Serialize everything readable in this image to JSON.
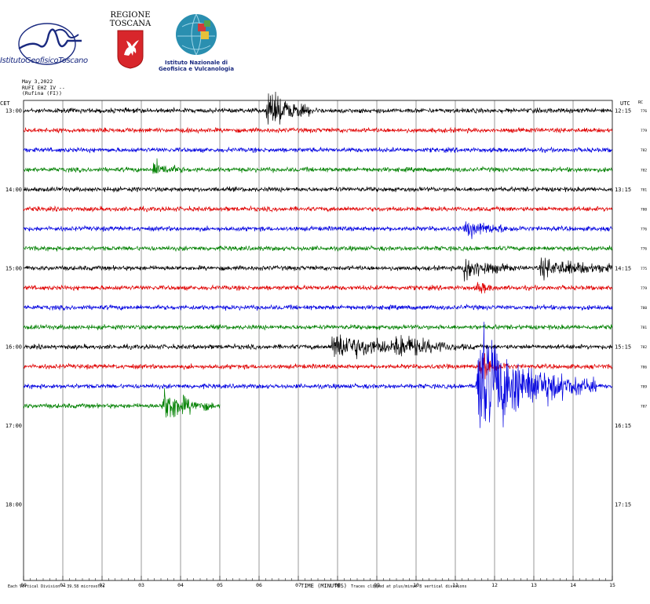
{
  "header": {
    "igt_label": "IstitutoGeofisicoToscano",
    "regione_line1": "REGIONE",
    "regione_line2": "TOSCANA",
    "ingv_line1": "Istituto Nazionale di",
    "ingv_line2": "Geofisica e Vulcanologia"
  },
  "station": {
    "date": "May 3,2022",
    "channel": "RUFI EHZ IV --",
    "place": "(Rufina (FI))"
  },
  "colors": {
    "trace_cycle": [
      "#000000",
      "#e00000",
      "#0000e0",
      "#008000"
    ],
    "grid": "#000000"
  },
  "chart_data": {
    "type": "line",
    "subtype": "helicorder seismogram",
    "xlabel": "TIME (MINUTES)",
    "xlim": [
      0,
      15
    ],
    "x_ticks": [
      "00",
      "01",
      "02",
      "03",
      "04",
      "05",
      "06",
      "07",
      "08",
      "09",
      "10",
      "11",
      "12",
      "13",
      "14",
      "15"
    ],
    "left_axis_title": "CET",
    "right_axis_title": "UTC",
    "far_right_title": "RC",
    "left_hour_labels": [
      {
        "row": 0,
        "label": "13:00"
      },
      {
        "row": 4,
        "label": "14:00"
      },
      {
        "row": 8,
        "label": "15:00"
      },
      {
        "row": 12,
        "label": "16:00"
      },
      {
        "row": 16,
        "label": "17:00"
      },
      {
        "row": 20,
        "label": "18:00"
      }
    ],
    "right_hour_labels": [
      {
        "row": 0,
        "label": "12:15"
      },
      {
        "row": 4,
        "label": "13:15"
      },
      {
        "row": 8,
        "label": "14:15"
      },
      {
        "row": 12,
        "label": "15:15"
      },
      {
        "row": 16,
        "label": "16:15"
      },
      {
        "row": 20,
        "label": "17:15"
      }
    ],
    "row_count": 24,
    "rc_values": [
      "776",
      "779",
      "782",
      "782",
      "781",
      "780",
      "776",
      "776",
      "775",
      "779",
      "780",
      "781",
      "782",
      "786",
      "789",
      "787"
    ],
    "rows": [
      {
        "row": 0,
        "color": "#000000",
        "end_minute": 15,
        "events": [
          {
            "t": 6.25,
            "amp": 3.0,
            "dur": 0.5
          }
        ]
      },
      {
        "row": 1,
        "color": "#e00000",
        "end_minute": 15,
        "events": []
      },
      {
        "row": 2,
        "color": "#0000e0",
        "end_minute": 15,
        "events": []
      },
      {
        "row": 3,
        "color": "#008000",
        "end_minute": 15,
        "events": [
          {
            "t": 3.35,
            "amp": 1.3,
            "dur": 0.3
          }
        ]
      },
      {
        "row": 4,
        "color": "#000000",
        "end_minute": 15,
        "events": []
      },
      {
        "row": 5,
        "color": "#e00000",
        "end_minute": 15,
        "events": []
      },
      {
        "row": 6,
        "color": "#0000e0",
        "end_minute": 15,
        "events": [
          {
            "t": 11.3,
            "amp": 1.2,
            "dur": 0.6
          }
        ]
      },
      {
        "row": 7,
        "color": "#008000",
        "end_minute": 15,
        "events": []
      },
      {
        "row": 8,
        "color": "#000000",
        "end_minute": 15,
        "events": [
          {
            "t": 11.25,
            "amp": 2.0,
            "dur": 0.5
          },
          {
            "t": 13.2,
            "amp": 1.3,
            "dur": 1.2
          }
        ]
      },
      {
        "row": 9,
        "color": "#e00000",
        "end_minute": 15,
        "events": [
          {
            "t": 11.6,
            "amp": 0.9,
            "dur": 0.2
          }
        ]
      },
      {
        "row": 10,
        "color": "#0000e0",
        "end_minute": 15,
        "events": []
      },
      {
        "row": 11,
        "color": "#008000",
        "end_minute": 15,
        "events": []
      },
      {
        "row": 12,
        "color": "#000000",
        "end_minute": 15,
        "events": [
          {
            "t": 7.9,
            "amp": 2.2,
            "dur": 1.2
          },
          {
            "t": 9.5,
            "amp": 1.2,
            "dur": 0.8
          }
        ]
      },
      {
        "row": 13,
        "color": "#e00000",
        "end_minute": 15,
        "events": [
          {
            "t": 11.65,
            "amp": 2.5,
            "dur": 0.3
          }
        ]
      },
      {
        "row": 14,
        "color": "#0000e0",
        "end_minute": 15,
        "events": [
          {
            "t": 11.6,
            "amp": 9.0,
            "dur": 1.2
          }
        ]
      },
      {
        "row": 15,
        "color": "#008000",
        "end_minute": 5,
        "events": [
          {
            "t": 3.6,
            "amp": 3.0,
            "dur": 0.5
          }
        ]
      }
    ],
    "footer_left": "Each Vertical Division = 39.58 microvolts",
    "footer_right": "Traces clipped at plus/minus 8 vertical divisions"
  }
}
